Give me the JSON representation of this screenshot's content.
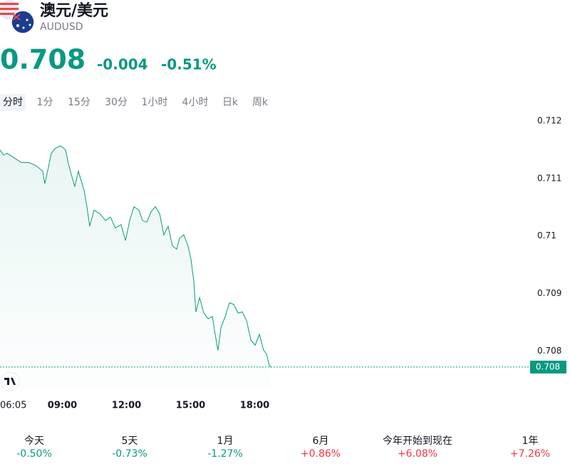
{
  "header": {
    "title": "澳元/美元",
    "symbol": "AUDUSD",
    "price": "0.708",
    "change": "-0.004",
    "change_percent": "-0.51%",
    "color": "#089981"
  },
  "tabs": [
    "分时",
    "1分",
    "15分",
    "30分",
    "1小时",
    "4小时",
    "日k",
    "周k"
  ],
  "active_tab": 0,
  "chart_data": {
    "type": "line",
    "x": [
      6.08,
      6.25,
      6.42,
      6.75,
      7.08,
      7.42,
      7.75,
      8.08,
      8.18,
      8.35,
      8.48,
      8.68,
      8.92,
      9.15,
      9.28,
      9.42,
      9.58,
      9.75,
      10.02,
      10.15,
      10.28,
      10.48,
      10.75,
      11.02,
      11.25,
      11.48,
      11.75,
      11.95,
      12.15,
      12.35,
      12.58,
      12.75,
      12.95,
      13.15,
      13.35,
      13.55,
      13.75,
      13.95,
      14.15,
      14.35,
      14.48,
      14.68,
      14.88,
      15.02,
      15.15,
      15.25,
      15.42,
      15.62,
      15.82,
      16.02,
      16.15,
      16.28,
      16.42,
      16.62,
      16.82,
      17.02,
      17.22,
      17.42,
      17.62,
      17.82,
      18.02,
      18.22,
      18.42,
      18.55,
      18.68,
      18.75
    ],
    "series": [
      {
        "color": "#089981",
        "values": [
          0.7115,
          0.71141,
          0.71144,
          0.71136,
          0.71128,
          0.71128,
          0.71123,
          0.71113,
          0.71091,
          0.7112,
          0.71144,
          0.71153,
          0.71157,
          0.7115,
          0.71126,
          0.71107,
          0.71086,
          0.71113,
          0.71079,
          0.71051,
          0.71017,
          0.71045,
          0.71039,
          0.71027,
          0.71033,
          0.71014,
          0.7102,
          0.70992,
          0.71027,
          0.71051,
          0.71045,
          0.71027,
          0.71024,
          0.71042,
          0.71051,
          0.71039,
          0.71002,
          0.71017,
          0.70983,
          0.70977,
          0.70996,
          0.71002,
          0.70983,
          0.70959,
          0.70921,
          0.70868,
          0.70893,
          0.70866,
          0.70856,
          0.7086,
          0.70829,
          0.70801,
          0.70841,
          0.7086,
          0.70884,
          0.70881,
          0.70866,
          0.70868,
          0.70853,
          0.70819,
          0.7081,
          0.70829,
          0.70801,
          0.70795,
          0.70775,
          0.70772
        ]
      }
    ],
    "xlim": [
      6.0833,
      30.75
    ],
    "ylim": [
      0.70736,
      0.71225
    ],
    "xticks": [
      {
        "value": 6.0833,
        "label": "06:05"
      },
      {
        "value": 9,
        "label": "09:00"
      },
      {
        "value": 12,
        "label": "12:00"
      },
      {
        "value": 15,
        "label": "15:00"
      },
      {
        "value": 18,
        "label": "18:00"
      }
    ],
    "yticks": [
      0.712,
      0.711,
      0.71,
      0.709,
      0.708
    ],
    "yticks_labels": null,
    "last_value_label": "0.708",
    "grid": false
  },
  "performance": [
    {
      "period": "今天",
      "change": "-0.50%",
      "color": "#089981"
    },
    {
      "period": "5天",
      "change": "-0.73%",
      "color": "#089981"
    },
    {
      "period": "1月",
      "change": "-1.27%",
      "color": "#089981"
    },
    {
      "period": "6月",
      "change": "+0.86%",
      "color": "#f23645"
    },
    {
      "period": "今年开始到现在",
      "change": "+6.08%",
      "color": "#f23645"
    },
    {
      "period": "1年",
      "change": "+7.26%",
      "color": "#f23645"
    }
  ]
}
